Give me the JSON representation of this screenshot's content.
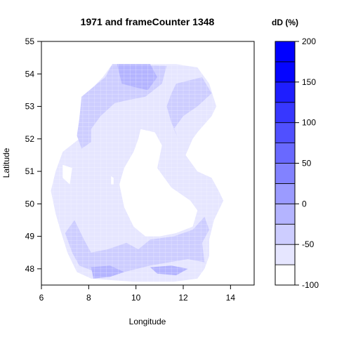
{
  "chart_data": {
    "type": "heatmap",
    "title": "1971 and frameCounter 1348",
    "xlabel": "Longitude",
    "ylabel": "Latitude",
    "xlim": [
      6,
      15
    ],
    "ylim": [
      47.5,
      55
    ],
    "x_ticks": [
      6,
      8,
      10,
      12,
      14
    ],
    "y_ticks": [
      48,
      49,
      50,
      51,
      52,
      53,
      54,
      55
    ],
    "colorbar": {
      "title": "dD (%)",
      "range": [
        -100,
        200
      ],
      "ticks": [
        -100,
        -50,
        0,
        50,
        100,
        150,
        200
      ],
      "levels": [
        -100,
        -75,
        -50,
        -25,
        0,
        25,
        50,
        75,
        100,
        125,
        150,
        175,
        200
      ],
      "colors": [
        "#ffffff",
        "#e6e6ff",
        "#cdcdff",
        "#b4b4ff",
        "#9b9bff",
        "#8282ff",
        "#6969ff",
        "#5050ff",
        "#3737ff",
        "#1e1eff",
        "#0505ff",
        "#0000ff"
      ]
    },
    "regions": [
      {
        "level": "-75 to -50",
        "fill": "#e6e6ff",
        "outline": [
          [
            9,
            54.3
          ],
          [
            11.7,
            54.3
          ],
          [
            12.6,
            54.2
          ],
          [
            13.1,
            53.7
          ],
          [
            13.4,
            53
          ],
          [
            13.2,
            52.7
          ],
          [
            12.6,
            52.2
          ],
          [
            12.4,
            52
          ],
          [
            12.1,
            51.5
          ],
          [
            12.6,
            51
          ],
          [
            13.2,
            50.8
          ],
          [
            13.5,
            50.4
          ],
          [
            13.7,
            50.1
          ],
          [
            13.3,
            49.5
          ],
          [
            13.1,
            48.9
          ],
          [
            13.1,
            48.4
          ],
          [
            12.9,
            48
          ],
          [
            12.6,
            47.7
          ],
          [
            11.6,
            47.6
          ],
          [
            9.9,
            47.6
          ],
          [
            8.1,
            47.7
          ],
          [
            7.5,
            47.9
          ],
          [
            7.1,
            48.5
          ],
          [
            6.8,
            49.2
          ],
          [
            6.6,
            49.7
          ],
          [
            6.4,
            50.4
          ],
          [
            6.6,
            51
          ],
          [
            6.9,
            51.6
          ],
          [
            7.6,
            52
          ],
          [
            7.8,
            52.5
          ],
          [
            7.7,
            53.3
          ],
          [
            8.2,
            53.6
          ],
          [
            8.6,
            53.9
          ]
        ]
      },
      {
        "level": "-50 to -25",
        "fill": "#cdcdff",
        "outline": [
          [
            9,
            54.3
          ],
          [
            11.3,
            54.25
          ],
          [
            11.1,
            53.7
          ],
          [
            10.4,
            53.3
          ],
          [
            9.7,
            53.2
          ],
          [
            9.1,
            53.1
          ],
          [
            8.5,
            52.7
          ],
          [
            8.1,
            52.3
          ],
          [
            8.1,
            51.9
          ],
          [
            7.7,
            51.7
          ],
          [
            7.5,
            52.1
          ],
          [
            7.6,
            52.6
          ],
          [
            7.7,
            53.3
          ],
          [
            8.2,
            53.6
          ],
          [
            8.7,
            53.9
          ]
        ]
      },
      {
        "level": "-50 to -25",
        "fill": "#cdcdff",
        "outline": [
          [
            11.7,
            53.7
          ],
          [
            12.8,
            53.9
          ],
          [
            13.2,
            53.4
          ],
          [
            12.6,
            53
          ],
          [
            12,
            52.7
          ],
          [
            11.6,
            52.3
          ],
          [
            11.8,
            52
          ],
          [
            11.5,
            52.5
          ],
          [
            11.3,
            53
          ],
          [
            11.5,
            53.4
          ]
        ]
      },
      {
        "level": "-50 to -25",
        "fill": "#cdcdff",
        "outline": [
          [
            7.4,
            49.5
          ],
          [
            7,
            49.1
          ],
          [
            7.3,
            48.5
          ],
          [
            7.6,
            48.1
          ],
          [
            8.3,
            47.9
          ],
          [
            9.5,
            47.9
          ],
          [
            10.6,
            48.1
          ],
          [
            11.4,
            48.2
          ],
          [
            12.2,
            48.3
          ],
          [
            12.9,
            48.2
          ],
          [
            12.8,
            48.8
          ],
          [
            13.1,
            49.2
          ],
          [
            12.9,
            49.6
          ],
          [
            12.4,
            49.2
          ],
          [
            11.6,
            49
          ],
          [
            10.6,
            48.9
          ],
          [
            10.1,
            48.6
          ],
          [
            9.6,
            48.8
          ],
          [
            8.8,
            48.6
          ],
          [
            8.1,
            48.5
          ],
          [
            7.8,
            48.9
          ]
        ]
      },
      {
        "level": "-25 to 0",
        "fill": "#b4b4ff",
        "outline": [
          [
            9.2,
            54.3
          ],
          [
            10.6,
            54.3
          ],
          [
            10.9,
            53.9
          ],
          [
            10.5,
            53.5
          ],
          [
            9.9,
            53.6
          ],
          [
            9.4,
            53.7
          ]
        ]
      },
      {
        "level": "-25 to 0",
        "fill": "#b4b4ff",
        "outline": [
          [
            8.1,
            48.05
          ],
          [
            8.9,
            48.1
          ],
          [
            9.5,
            47.9
          ],
          [
            8.9,
            47.75
          ],
          [
            8.2,
            47.7
          ]
        ]
      },
      {
        "level": "-25 to 0",
        "fill": "#b4b4ff",
        "outline": [
          [
            10.6,
            48.05
          ],
          [
            11.5,
            48.1
          ],
          [
            12.2,
            48.0
          ],
          [
            11.7,
            47.8
          ],
          [
            10.9,
            47.85
          ]
        ]
      },
      {
        "level": "-100 to -75",
        "fill": "#ffffff",
        "outline": [
          [
            10.2,
            52.3
          ],
          [
            10.8,
            52.2
          ],
          [
            11.1,
            51.8
          ],
          [
            10.9,
            51.1
          ],
          [
            11.5,
            50.5
          ],
          [
            12.3,
            50.1
          ],
          [
            12.6,
            49.8
          ],
          [
            12.4,
            49.3
          ],
          [
            11.7,
            49.1
          ],
          [
            11.0,
            49.0
          ],
          [
            10.4,
            49.0
          ],
          [
            9.9,
            49.3
          ],
          [
            9.5,
            49.9
          ],
          [
            9.3,
            50.6
          ],
          [
            9.5,
            51.1
          ],
          [
            9.9,
            51.6
          ],
          [
            10.1,
            52
          ]
        ]
      },
      {
        "level": "-100 to -75",
        "fill": "#ffffff",
        "outline": [
          [
            6.9,
            51.2
          ],
          [
            7.3,
            51.1
          ],
          [
            7.2,
            50.6
          ],
          [
            6.9,
            50.8
          ]
        ]
      },
      {
        "level": "-100 to -75",
        "fill": "#ffffff",
        "outline": [
          [
            8.95,
            50.85
          ],
          [
            9.05,
            50.8
          ],
          [
            9.05,
            50.6
          ],
          [
            8.95,
            50.6
          ]
        ]
      }
    ]
  }
}
